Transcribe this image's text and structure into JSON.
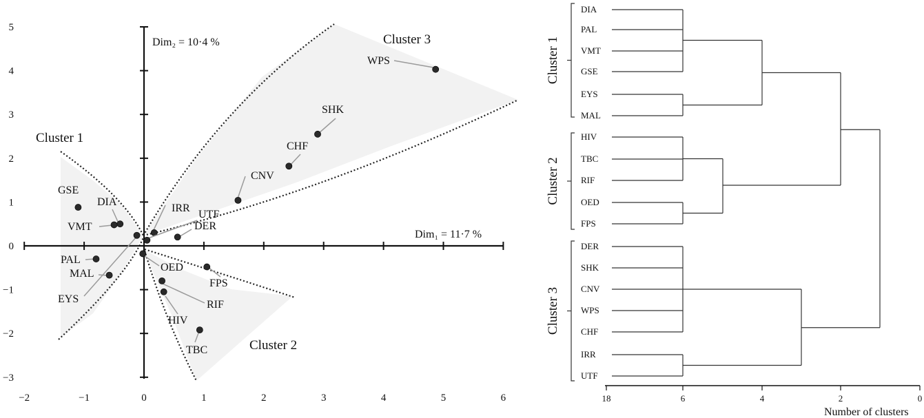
{
  "chart_data": [
    {
      "type": "scatter",
      "xlim": [
        -2,
        6.3
      ],
      "ylim": [
        -3,
        5
      ],
      "x_ticks": [
        -2,
        -1,
        0,
        1,
        2,
        3,
        4,
        5,
        6
      ],
      "y_ticks": [
        -3,
        -2,
        -1,
        0,
        1,
        2,
        3,
        4,
        5
      ],
      "x_axis_label": "Dim₁ = 11·7 %",
      "y_axis_label": "Dim₂ = 10·4 %",
      "points": [
        {
          "label": "WPS",
          "x": 4.87,
          "y": 4.03
        },
        {
          "label": "SHK",
          "x": 2.9,
          "y": 2.55
        },
        {
          "label": "CHF",
          "x": 2.42,
          "y": 1.82
        },
        {
          "label": "CNV",
          "x": 1.57,
          "y": 1.04
        },
        {
          "label": "IRR",
          "x": 0.17,
          "y": 0.3
        },
        {
          "label": "UTF",
          "x": 0.05,
          "y": 0.13
        },
        {
          "label": "DER",
          "x": 0.56,
          "y": 0.2
        },
        {
          "label": "GSE",
          "x": -1.1,
          "y": 0.88
        },
        {
          "label": "DIA",
          "x": -0.4,
          "y": 0.5
        },
        {
          "label": "VMT",
          "x": -0.5,
          "y": 0.48
        },
        {
          "label": "EYS",
          "x": -0.12,
          "y": 0.24
        },
        {
          "label": "PAL",
          "x": -0.8,
          "y": -0.3
        },
        {
          "label": "MAL",
          "x": -0.58,
          "y": -0.67
        },
        {
          "label": "OED",
          "x": -0.02,
          "y": -0.18
        },
        {
          "label": "FPS",
          "x": 1.05,
          "y": -0.48
        },
        {
          "label": "RIF",
          "x": 0.3,
          "y": -0.8
        },
        {
          "label": "HIV",
          "x": 0.33,
          "y": -1.05
        },
        {
          "label": "TBC",
          "x": 0.93,
          "y": -1.92
        }
      ],
      "clusters": [
        {
          "name": "Cluster 1"
        },
        {
          "name": "Cluster 2"
        },
        {
          "name": "Cluster 3"
        }
      ]
    },
    {
      "type": "dendrogram",
      "xlabel": "Number of clusters",
      "x_ticks": [
        "18",
        "6",
        "4",
        "2",
        "0"
      ],
      "groups": [
        {
          "name": "Cluster 1",
          "leaves": [
            "DIA",
            "PAL",
            "VMT",
            "GSE",
            "EYS",
            "MAL"
          ]
        },
        {
          "name": "Cluster 2",
          "leaves": [
            "HIV",
            "TBC",
            "RIF",
            "OED",
            "FPS"
          ]
        },
        {
          "name": "Cluster 3",
          "leaves": [
            "DER",
            "SHK",
            "CNV",
            "WPS",
            "CHF",
            "IRR",
            "UTF"
          ]
        }
      ]
    }
  ]
}
